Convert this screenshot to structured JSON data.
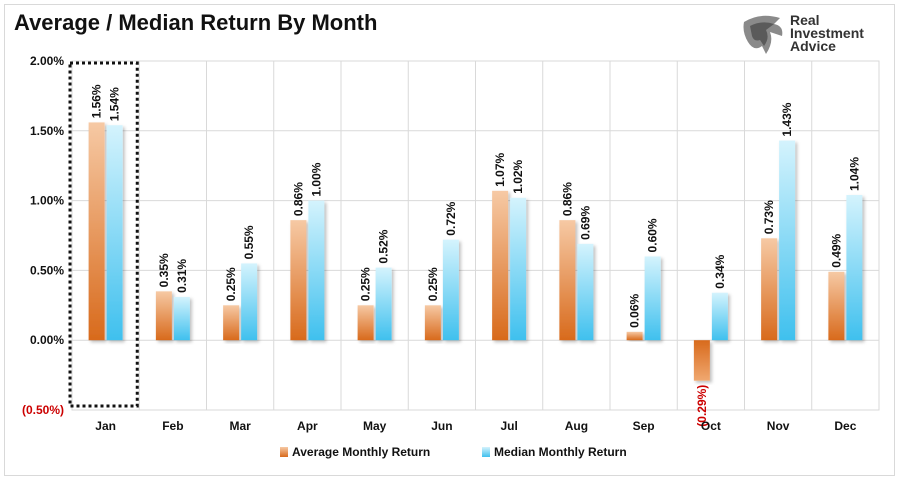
{
  "chart_data": {
    "type": "bar",
    "title": "Average / Median Return By Month",
    "categories": [
      "Jan",
      "Feb",
      "Mar",
      "Apr",
      "May",
      "Jun",
      "Jul",
      "Aug",
      "Sep",
      "Oct",
      "Nov",
      "Dec"
    ],
    "series": [
      {
        "name": "Average Monthly Return",
        "values": [
          1.56,
          0.35,
          0.25,
          0.86,
          0.25,
          0.25,
          1.07,
          0.86,
          0.06,
          -0.29,
          0.73,
          0.49
        ],
        "color": "#e07b2e"
      },
      {
        "name": "Median Monthly Return",
        "values": [
          1.54,
          0.31,
          0.55,
          1.0,
          0.52,
          0.72,
          1.02,
          0.69,
          0.6,
          0.34,
          1.43,
          1.04
        ],
        "color": "#4fc7f0"
      }
    ],
    "ylim": [
      -0.5,
      2.0
    ],
    "yticks": [
      -0.5,
      0.0,
      0.5,
      1.0,
      1.5,
      2.0
    ],
    "ytick_labels": [
      "(0.50%)",
      "0.00%",
      "0.50%",
      "1.00%",
      "1.50%",
      "2.00%"
    ],
    "data_labels": [
      [
        "1.56%",
        "0.35%",
        "0.25%",
        "0.86%",
        "0.25%",
        "0.25%",
        "1.07%",
        "0.86%",
        "0.06%",
        "(0.29%)",
        "0.73%",
        "0.49%"
      ],
      [
        "1.54%",
        "0.31%",
        "0.55%",
        "1.00%",
        "0.52%",
        "0.72%",
        "1.02%",
        "0.69%",
        "0.60%",
        "0.34%",
        "1.43%",
        "1.04%"
      ]
    ],
    "highlight": "Jan",
    "legend_position": "bottom",
    "grid": true
  },
  "logo": {
    "line1": "Real",
    "line2": "Investment",
    "line3": "Advice"
  },
  "colors": {
    "negative": "#cc0000",
    "grid": "#d9d9d9"
  }
}
